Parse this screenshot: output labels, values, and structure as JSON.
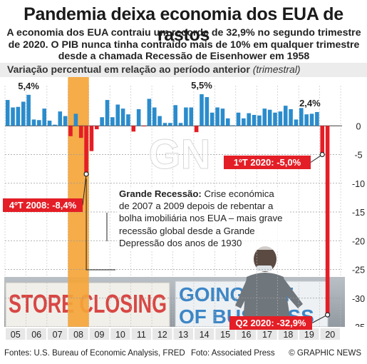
{
  "header": {
    "title": "Pandemia deixa economia dos EUA de rastos",
    "subtitle": "A economia dos EUA contraiu um recorde de 32,9% no segundo trimestre de 2020. O PIB nunca tinha contraído mais de 10% em qualquer trimestre desde a chamada Recessão de Eisenhower em 1958"
  },
  "footer": {
    "sources": "Fontes: U.S. Bureau of Economic Analysis, FRED",
    "photo": "Foto: Associated Press",
    "copyright": "© GRAPHIC NEWS"
  },
  "callout": {
    "heading": "Grande Recessão:",
    "text": "Crise económica de 2007 a 2009 depois de rebentar a bolha imobiliária nos EUA – mais grave recessão global desde a Grande Depressão dos anos de 1930"
  },
  "photo": {
    "sign_left": "STORE CLOSING",
    "sign_right": "GOING OUT OF BUSINESS",
    "watermark": "GN"
  },
  "chart_data": {
    "type": "bar",
    "ylabel": "Variação percentual em relação ao período anterior",
    "ylabel_note": "(trimestral)",
    "ylim": [
      -35,
      6
    ],
    "yticks": [
      0,
      -5,
      -10,
      -15,
      -20,
      -25,
      -30,
      -35
    ],
    "x_start_year": 2005,
    "x_tick_labels": [
      "05",
      "06",
      "07",
      "08",
      "09",
      "10",
      "11",
      "12",
      "13",
      "14",
      "15",
      "16",
      "17",
      "18",
      "19",
      "20"
    ],
    "highlight_period": "2008",
    "colors": {
      "positive": "#2b8ccc",
      "negative": "#e41e26",
      "highlight": "#f4a53a",
      "label_box": "#e41e26"
    },
    "values": [
      4.5,
      3.2,
      3.3,
      4.2,
      5.4,
      1.1,
      1.0,
      3.0,
      0.9,
      0.2,
      2.5,
      1.7,
      -1.8,
      2.1,
      -2.1,
      -8.4,
      -4.4,
      -0.6,
      1.5,
      4.5,
      1.5,
      3.7,
      3.0,
      2.0,
      -1.0,
      2.9,
      -0.1,
      4.7,
      3.2,
      1.7,
      0.5,
      0.5,
      3.6,
      0.5,
      3.2,
      3.2,
      -1.1,
      5.5,
      5.0,
      2.3,
      3.2,
      3.0,
      1.3,
      0.1,
      2.3,
      1.3,
      2.2,
      1.9,
      1.8,
      3.0,
      2.8,
      2.3,
      2.5,
      3.5,
      2.9,
      1.1,
      3.1,
      2.0,
      2.1,
      2.4,
      -5.0,
      -32.9
    ],
    "annotations": [
      {
        "text": "5,4%",
        "index": 4
      },
      {
        "text": "5,5%",
        "index": 37
      },
      {
        "text": "2,4%",
        "index": 59
      },
      {
        "text": "4ºT 2008: -8,4%",
        "index": 15
      },
      {
        "text": "1ºT 2020: -5,0%",
        "index": 60
      },
      {
        "text": "Q2 2020: -32,9%",
        "index": 61
      }
    ]
  }
}
